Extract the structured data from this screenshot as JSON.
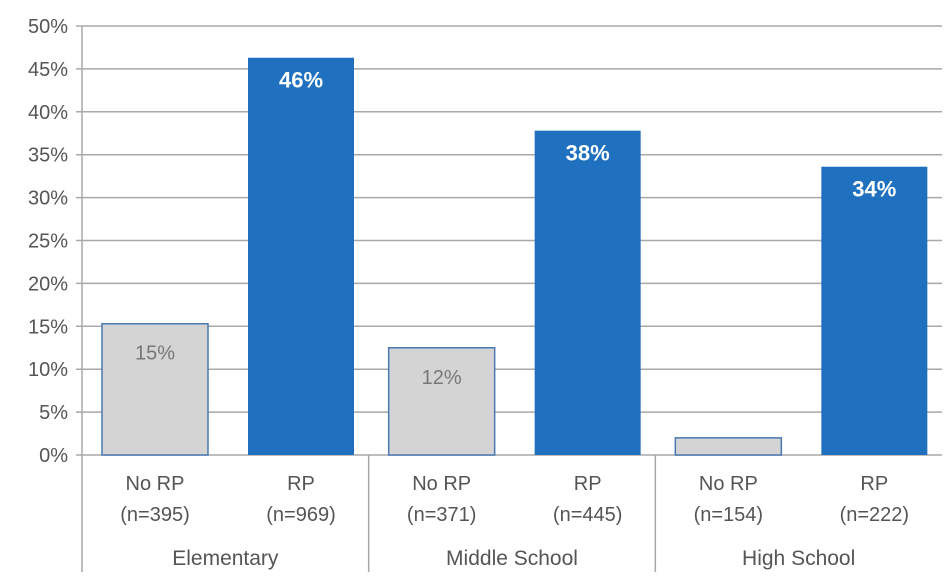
{
  "chart_data": {
    "type": "bar",
    "title": "",
    "xlabel": "",
    "ylabel": "",
    "ylim": [
      0,
      50
    ],
    "yticks": [
      "0%",
      "5%",
      "10%",
      "15%",
      "20%",
      "25%",
      "30%",
      "35%",
      "40%",
      "45%",
      "50%"
    ],
    "ytick_values": [
      0,
      5,
      10,
      15,
      20,
      25,
      30,
      35,
      40,
      45,
      50
    ],
    "grid": true,
    "groups": [
      {
        "name": "Elementary",
        "bars": [
          {
            "label_line1": "No RP",
            "label_line2": "(n=395)",
            "value": 15.3,
            "data_label": "15%",
            "series": "No RP"
          },
          {
            "label_line1": "RP",
            "label_line2": "(n=969)",
            "value": 46.3,
            "data_label": "46%",
            "series": "RP"
          }
        ]
      },
      {
        "name": "Middle School",
        "bars": [
          {
            "label_line1": "No RP",
            "label_line2": "(n=371)",
            "value": 12.5,
            "data_label": "12%",
            "series": "No RP"
          },
          {
            "label_line1": "RP",
            "label_line2": "(n=445)",
            "value": 37.8,
            "data_label": "38%",
            "series": "RP"
          }
        ]
      },
      {
        "name": "High School",
        "bars": [
          {
            "label_line1": "No RP",
            "label_line2": "(n=154)",
            "value": 2.0,
            "data_label": "",
            "series": "No RP"
          },
          {
            "label_line1": "RP",
            "label_line2": "(n=222)",
            "value": 33.6,
            "data_label": "34%",
            "series": "RP"
          }
        ]
      }
    ],
    "colors": {
      "No RP": "#d4d4d4",
      "No RP_border": "#4a78b0",
      "RP": "#1f70bf",
      "grid": "#a8a8a8",
      "axis_text": "#555555",
      "label_no_rp": "#777777",
      "label_rp": "#ffffff"
    }
  }
}
